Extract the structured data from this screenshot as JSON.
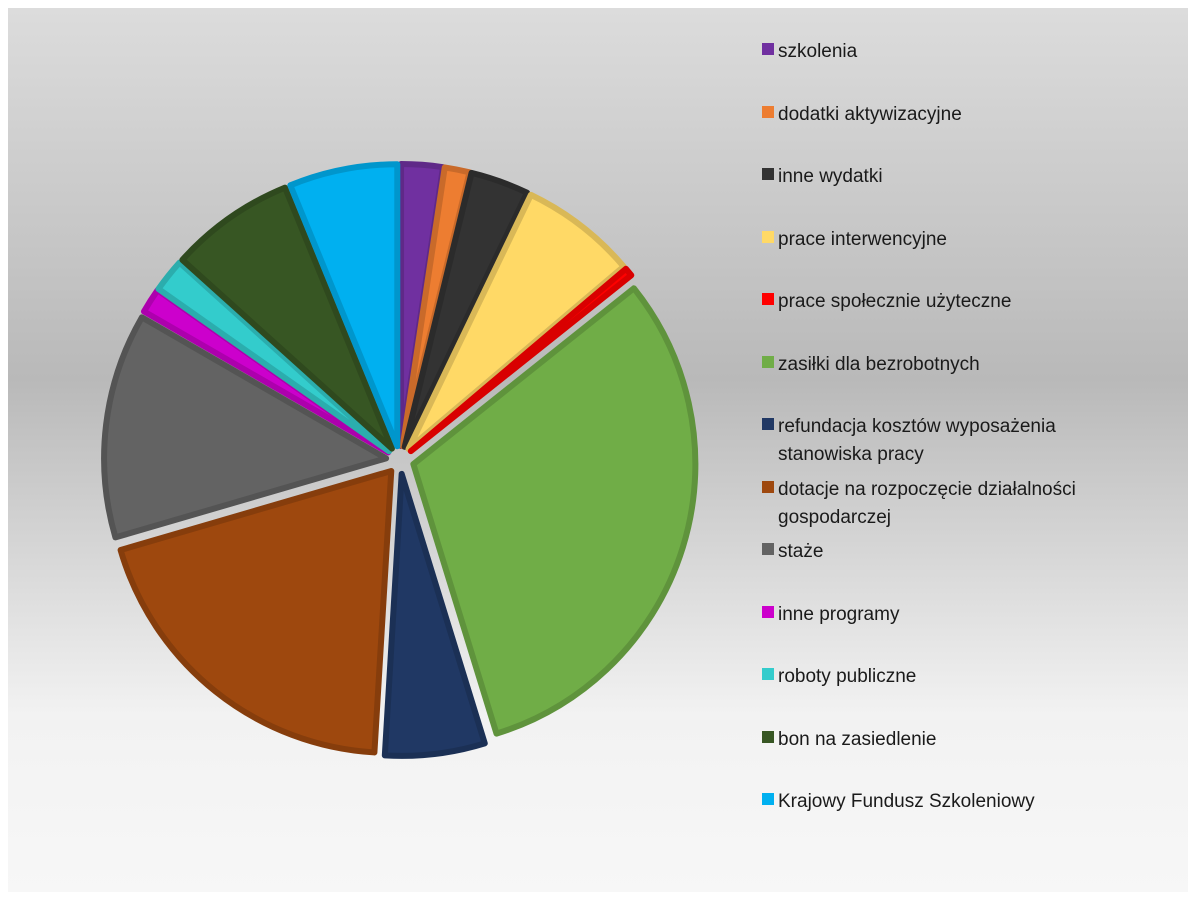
{
  "chart_data": {
    "type": "pie",
    "title": "",
    "legend_position": "right",
    "categories": [
      "szkolenia",
      "dodatki aktywizacyjne",
      "inne wydatki",
      "prace interwencyjne",
      "prace społecznie użyteczne",
      "zasiłki dla bezrobotnych",
      "refundacja kosztów wyposażenia stanowiska pracy",
      "dotacje na rozpoczęcie działalności gospodarczej",
      "staże",
      "inne programy",
      "roboty publiczne",
      "bon na zasiedlenie",
      "Krajowy Fundusz Szkoleniowy"
    ],
    "values": [
      2.5,
      1.5,
      3.5,
      7.0,
      0.5,
      32.5,
      6.0,
      20.5,
      13.5,
      1.5,
      2.0,
      7.5,
      6.5
    ],
    "colors": [
      "#7030a0",
      "#ed7d31",
      "#333333",
      "#ffd966",
      "#ff0000",
      "#70ad47",
      "#203864",
      "#9e480e",
      "#636363",
      "#cc00cc",
      "#33cccc",
      "#375623",
      "#00b0f0"
    ],
    "legend_lines": [
      "szkolenia",
      "dodatki aktywizacyjne",
      "inne wydatki",
      "prace interwencyjne",
      "prace społecznie użyteczne",
      "zasiłki dla bezrobotnych",
      "refundacja kosztów wyposażenia\nstanowiska pracy",
      "dotacje na rozpoczęcie działalności\ngospodarczej",
      "staże",
      "inne programy",
      "roboty publiczne",
      "bon na zasiedlenie",
      "Krajowy Fundusz Szkoleniowy"
    ]
  }
}
